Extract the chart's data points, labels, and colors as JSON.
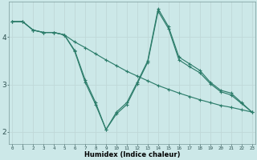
{
  "xlabel": "Humidex (Indice chaleur)",
  "x": [
    0,
    1,
    2,
    3,
    4,
    5,
    6,
    7,
    8,
    9,
    10,
    11,
    12,
    13,
    14,
    15,
    16,
    17,
    18,
    19,
    20,
    21,
    22,
    23
  ],
  "line1": [
    4.33,
    4.33,
    4.15,
    4.1,
    4.1,
    4.05,
    3.9,
    3.78,
    3.65,
    3.52,
    3.4,
    3.28,
    3.18,
    3.08,
    2.98,
    2.9,
    2.82,
    2.75,
    2.68,
    2.62,
    2.56,
    2.52,
    2.47,
    2.42
  ],
  "line2": [
    4.33,
    4.33,
    4.15,
    4.1,
    4.1,
    4.05,
    3.72,
    3.1,
    2.62,
    2.05,
    2.42,
    2.62,
    3.05,
    3.5,
    4.6,
    4.22,
    3.58,
    3.44,
    3.3,
    3.05,
    2.88,
    2.82,
    2.62,
    2.42
  ],
  "line3": [
    4.33,
    4.33,
    4.15,
    4.1,
    4.1,
    4.05,
    3.7,
    3.05,
    2.58,
    2.05,
    2.38,
    2.58,
    3.02,
    3.47,
    4.55,
    4.18,
    3.52,
    3.38,
    3.25,
    3.02,
    2.85,
    2.78,
    2.6,
    2.42
  ],
  "bg_color": "#cce8e8",
  "grid_color": "#c0d8d8",
  "line_color": "#2d7d6b",
  "ylim": [
    1.75,
    4.75
  ],
  "yticks": [
    2,
    3,
    4
  ],
  "xlim": [
    -0.3,
    23.3
  ]
}
